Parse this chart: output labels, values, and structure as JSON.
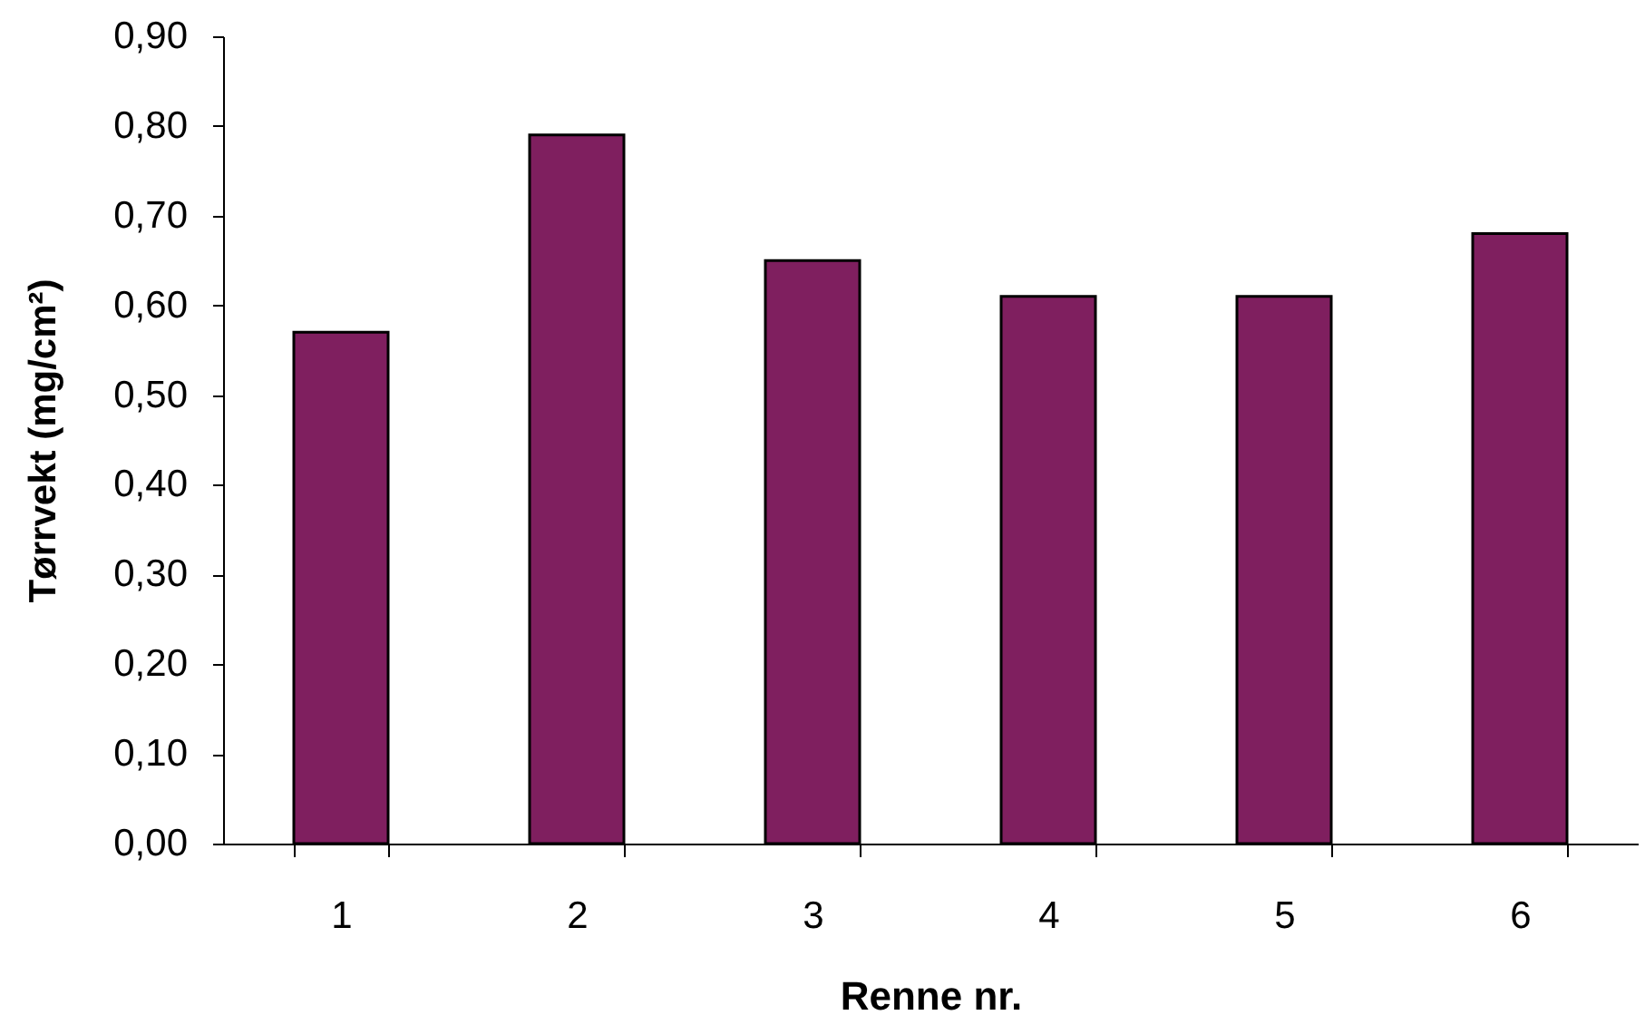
{
  "chart_data": {
    "type": "bar",
    "xlabel": "Renne nr.",
    "ylabel": "Tørrvekt (mg/cm²)",
    "categories": [
      "1",
      "2",
      "3",
      "4",
      "5",
      "6"
    ],
    "values": [
      0.57,
      0.79,
      0.65,
      0.61,
      0.61,
      0.68
    ],
    "color": "#7f1f5f",
    "ylim": [
      0,
      0.9
    ],
    "yticks": [
      {
        "value": 0,
        "label": "0,00"
      },
      {
        "value": 0.1,
        "label": "0,10"
      },
      {
        "value": 0.2,
        "label": "0,20"
      },
      {
        "value": 0.3,
        "label": "0,30"
      },
      {
        "value": 0.4,
        "label": "0,40"
      },
      {
        "value": 0.5,
        "label": "0,50"
      },
      {
        "value": 0.6,
        "label": "0,60"
      },
      {
        "value": 0.7,
        "label": "0,70"
      },
      {
        "value": 0.8,
        "label": "0,80"
      },
      {
        "value": 0.9,
        "label": "0,90"
      }
    ]
  }
}
